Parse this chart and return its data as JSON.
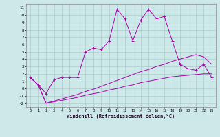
{
  "xlabel": "Windchill (Refroidissement éolien,°C)",
  "background_color": "#cce8e8",
  "line_color": "#aa00aa",
  "grid_color": "#aacccc",
  "xlim": [
    -0.5,
    23.5
  ],
  "ylim": [
    -2.5,
    11.5
  ],
  "xticks": [
    0,
    1,
    2,
    3,
    4,
    5,
    6,
    7,
    8,
    9,
    10,
    11,
    12,
    13,
    14,
    15,
    16,
    17,
    18,
    19,
    20,
    21,
    22,
    23
  ],
  "yticks": [
    -2,
    -1,
    0,
    1,
    2,
    3,
    4,
    5,
    6,
    7,
    8,
    9,
    10,
    11
  ],
  "series1_x": [
    0,
    1,
    2,
    3,
    4,
    5,
    6,
    7,
    8,
    9,
    10,
    11,
    12,
    13,
    14,
    15,
    16,
    17,
    18,
    19,
    20,
    21,
    22,
    23
  ],
  "series1_y": [
    1.5,
    0.5,
    -0.7,
    1.2,
    1.5,
    1.5,
    1.5,
    5.0,
    5.5,
    5.3,
    6.5,
    10.8,
    9.5,
    6.5,
    9.3,
    10.8,
    9.5,
    9.8,
    6.5,
    3.3,
    2.7,
    2.5,
    3.3,
    1.5
  ],
  "series2_x": [
    0,
    1,
    2,
    3,
    4,
    5,
    6,
    7,
    8,
    9,
    10,
    11,
    12,
    13,
    14,
    15,
    16,
    17,
    18,
    19,
    20,
    21,
    22,
    23
  ],
  "series2_y": [
    1.5,
    0.5,
    -2.0,
    -1.8,
    -1.6,
    -1.4,
    -1.2,
    -0.9,
    -0.7,
    -0.5,
    -0.2,
    0.0,
    0.3,
    0.5,
    0.8,
    1.0,
    1.2,
    1.4,
    1.6,
    1.7,
    1.8,
    1.9,
    2.0,
    2.0
  ],
  "series3_x": [
    0,
    1,
    2,
    3,
    4,
    5,
    6,
    7,
    8,
    9,
    10,
    11,
    12,
    13,
    14,
    15,
    16,
    17,
    18,
    19,
    20,
    21,
    22,
    23
  ],
  "series3_y": [
    1.5,
    0.5,
    -2.0,
    -1.7,
    -1.4,
    -1.1,
    -0.8,
    -0.4,
    -0.1,
    0.3,
    0.7,
    1.1,
    1.5,
    1.9,
    2.3,
    2.6,
    3.0,
    3.3,
    3.7,
    4.0,
    4.3,
    4.6,
    4.3,
    3.3
  ]
}
